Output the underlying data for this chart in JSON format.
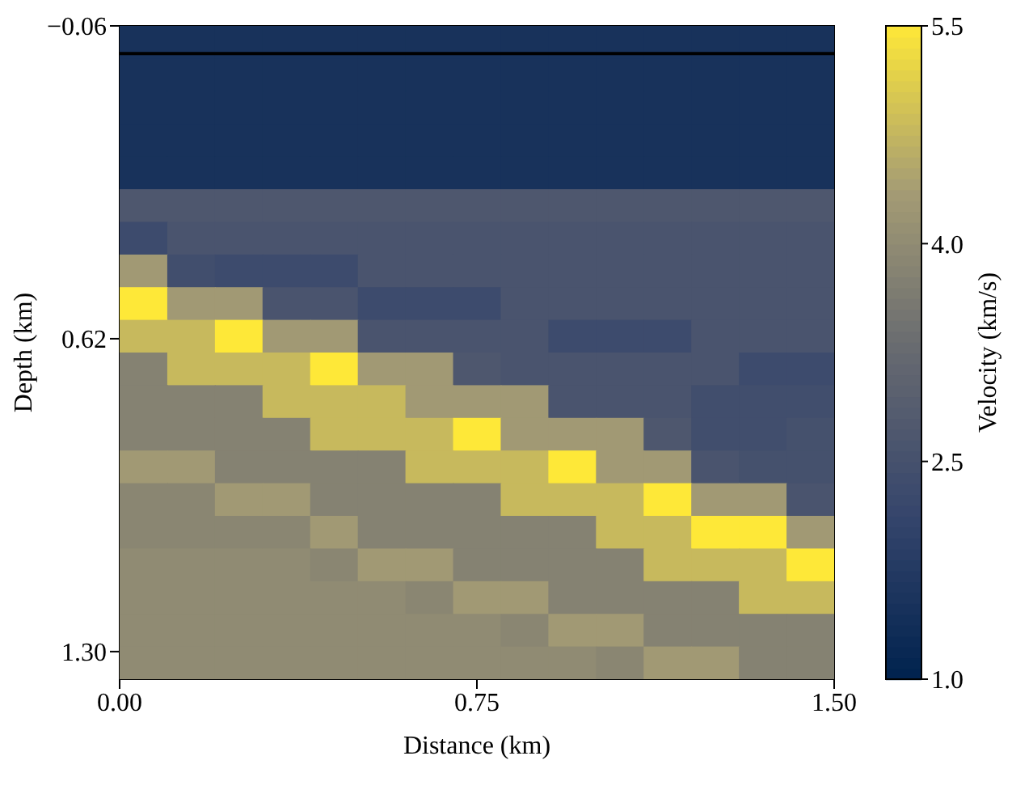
{
  "chart_data": {
    "type": "heatmap",
    "xlabel": "Distance (km)",
    "ylabel": "Depth (km)",
    "clabel": "Velocity (km/s)",
    "xlim": [
      0,
      1.5
    ],
    "xticks": [
      {
        "value": 0,
        "label": "0.00"
      },
      {
        "value": 0.75,
        "label": "0.75"
      },
      {
        "value": 1.5,
        "label": "1.50"
      }
    ],
    "ylim": [
      1.36,
      -0.06
    ],
    "yticks": [
      {
        "value": -0.06,
        "label": "−0.06"
      },
      {
        "value": 0.62,
        "label": "0.62"
      },
      {
        "value": 1.3,
        "label": "1.30"
      }
    ],
    "clim": [
      1.0,
      5.5
    ],
    "cticks": [
      {
        "value": 1,
        "label": "1.0"
      },
      {
        "value": 2.5,
        "label": "2.5"
      },
      {
        "value": 4,
        "label": "4.0"
      },
      {
        "value": 5.5,
        "label": "5.5"
      }
    ],
    "ref_lines": [
      {
        "axis": "y",
        "value": 0,
        "color": "#000000"
      }
    ],
    "cells": [
      [
        1.5,
        1.5,
        1.5,
        1.5,
        1.5,
        1.5,
        1.5,
        1.5,
        1.5,
        1.5,
        1.5,
        1.5,
        1.5,
        1.5,
        1.5
      ],
      [
        1.5,
        1.5,
        1.5,
        1.5,
        1.5,
        1.5,
        1.5,
        1.5,
        1.5,
        1.5,
        1.5,
        1.5,
        1.5,
        1.5,
        1.5
      ],
      [
        1.5,
        1.5,
        1.5,
        1.5,
        1.5,
        1.5,
        1.5,
        1.5,
        1.5,
        1.5,
        1.5,
        1.5,
        1.5,
        1.5,
        1.5
      ],
      [
        1.5,
        1.5,
        1.5,
        1.5,
        1.5,
        1.5,
        1.5,
        1.5,
        1.5,
        1.5,
        1.5,
        1.5,
        1.5,
        1.5,
        1.5
      ],
      [
        1.5,
        1.5,
        1.5,
        1.5,
        1.5,
        1.5,
        1.5,
        1.5,
        1.5,
        1.5,
        1.5,
        1.5,
        1.5,
        1.5,
        1.5
      ],
      [
        2.7,
        2.7,
        2.7,
        2.7,
        2.7,
        2.7,
        2.7,
        2.7,
        2.7,
        2.7,
        2.7,
        2.7,
        2.7,
        2.7,
        2.7
      ],
      [
        2.3,
        2.6,
        2.6,
        2.6,
        2.6,
        2.6,
        2.6,
        2.6,
        2.6,
        2.6,
        2.6,
        2.6,
        2.6,
        2.6,
        2.6
      ],
      [
        4.3,
        2.4,
        2.3,
        2.3,
        2.3,
        2.6,
        2.6,
        2.6,
        2.6,
        2.6,
        2.6,
        2.6,
        2.6,
        2.6,
        2.6
      ],
      [
        5.5,
        4.3,
        4.3,
        2.6,
        2.6,
        2.3,
        2.3,
        2.3,
        2.6,
        2.6,
        2.6,
        2.6,
        2.6,
        2.6,
        2.6
      ],
      [
        4.8,
        4.8,
        5.5,
        4.3,
        4.3,
        2.6,
        2.6,
        2.6,
        2.6,
        2.3,
        2.3,
        2.3,
        2.6,
        2.6,
        2.6
      ],
      [
        3.8,
        4.8,
        4.8,
        4.8,
        5.5,
        4.3,
        4.3,
        2.7,
        2.6,
        2.6,
        2.6,
        2.6,
        2.6,
        2.3,
        2.3
      ],
      [
        3.8,
        3.8,
        3.8,
        4.8,
        4.8,
        4.8,
        4.3,
        4.3,
        4.3,
        2.6,
        2.6,
        2.6,
        2.4,
        2.4,
        2.4
      ],
      [
        3.8,
        3.8,
        3.8,
        3.8,
        4.8,
        4.8,
        4.8,
        5.5,
        4.3,
        4.3,
        4.3,
        2.7,
        2.4,
        2.4,
        2.5
      ],
      [
        4.3,
        4.3,
        3.8,
        3.8,
        3.8,
        3.8,
        4.8,
        4.8,
        4.8,
        5.5,
        4.3,
        4.3,
        2.6,
        2.5,
        2.5
      ],
      [
        3.9,
        3.9,
        4.3,
        4.3,
        3.8,
        3.8,
        3.8,
        3.8,
        4.8,
        4.8,
        4.8,
        5.5,
        4.3,
        4.3,
        2.6
      ],
      [
        3.9,
        3.9,
        3.9,
        3.9,
        4.3,
        3.8,
        3.8,
        3.8,
        3.8,
        3.8,
        4.8,
        4.8,
        5.5,
        5.5,
        4.3
      ],
      [
        4.0,
        4.0,
        4.0,
        4.0,
        3.9,
        4.3,
        4.3,
        3.8,
        3.8,
        3.8,
        3.8,
        4.8,
        4.8,
        4.8,
        5.5
      ],
      [
        4.0,
        4.0,
        4.0,
        4.0,
        4.0,
        4.0,
        3.9,
        4.3,
        4.3,
        3.8,
        3.8,
        3.8,
        3.8,
        4.8,
        4.8
      ],
      [
        4.0,
        4.0,
        4.0,
        4.0,
        4.0,
        4.0,
        4.0,
        4.0,
        3.9,
        4.3,
        4.3,
        3.8,
        3.8,
        3.8,
        3.8
      ],
      [
        4.0,
        4.0,
        4.0,
        4.0,
        4.0,
        4.0,
        4.0,
        4.0,
        4.0,
        4.0,
        3.9,
        4.3,
        4.3,
        3.8,
        3.8
      ]
    ]
  }
}
